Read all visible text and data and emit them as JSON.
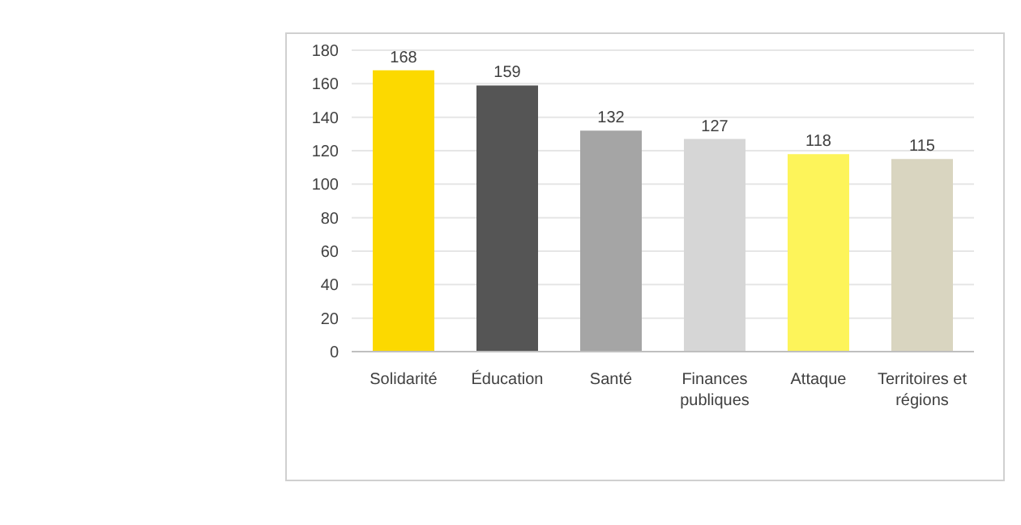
{
  "chart_data": {
    "type": "bar",
    "categories": [
      "Solidarité",
      "Éducation",
      "Santé",
      "Finances publiques",
      "Attaque",
      "Territoires et régions"
    ],
    "values": [
      168,
      159,
      132,
      127,
      118,
      115
    ],
    "colors": [
      "#fcd900",
      "#555555",
      "#a5a5a5",
      "#d6d6d6",
      "#fdf45a",
      "#d9d5c0"
    ],
    "ylim": [
      0,
      180
    ],
    "yticks": [
      0,
      20,
      40,
      60,
      80,
      100,
      120,
      140,
      160,
      180
    ],
    "grid": "y",
    "data_labels": true
  }
}
